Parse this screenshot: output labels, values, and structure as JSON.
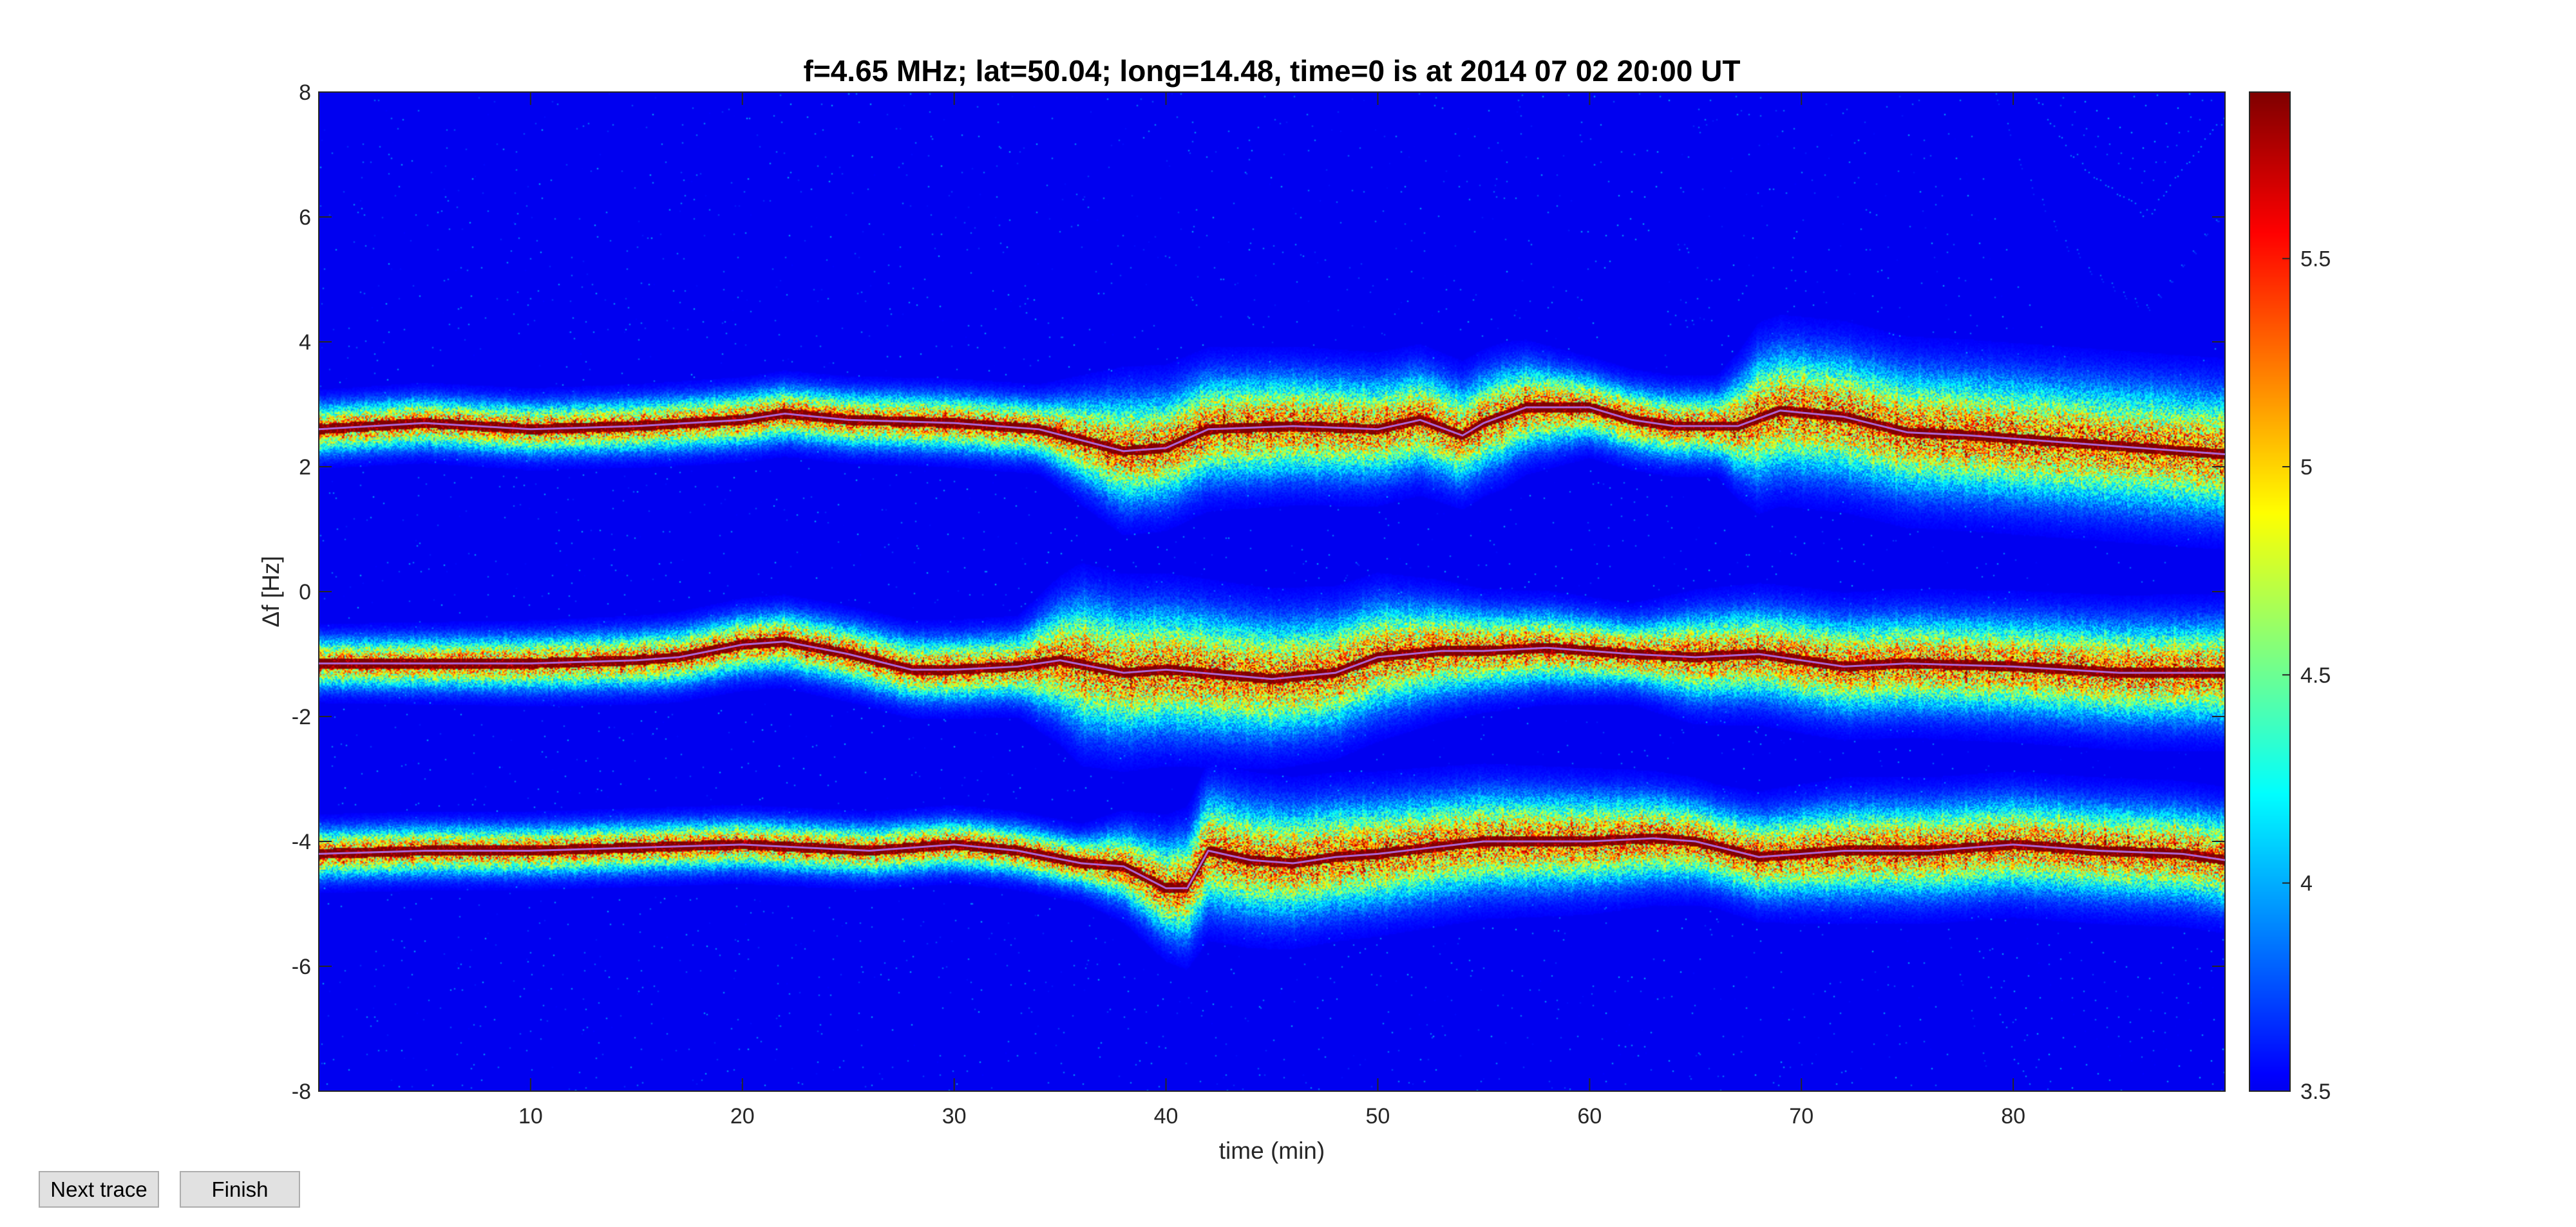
{
  "chart_data": {
    "type": "heatmap",
    "title": "f=4.65 MHz;  lat=50.04; long=14.48, time=0 is at 2014 07 02 20:00 UT",
    "xlabel": "time (min)",
    "ylabel": "Δf [Hz]",
    "xlim": [
      0,
      90
    ],
    "ylim": [
      -8,
      8
    ],
    "xticks": [
      10,
      20,
      30,
      40,
      50,
      60,
      70,
      80
    ],
    "yticks": [
      8,
      6,
      4,
      2,
      0,
      -2,
      -4,
      -6,
      -8
    ],
    "colorbar": {
      "clim": [
        3.5,
        5.9
      ],
      "ticks": [
        5.5,
        5,
        4.5,
        4,
        3.5
      ],
      "colormap": "jet"
    },
    "grid": false,
    "background_value": 3.5,
    "series": [
      {
        "trace": [
          [
            0,
            2.6
          ],
          [
            5,
            2.7
          ],
          [
            10,
            2.6
          ],
          [
            15,
            2.65
          ],
          [
            20,
            2.75
          ],
          [
            22,
            2.85
          ],
          [
            25,
            2.75
          ],
          [
            30,
            2.7
          ],
          [
            34,
            2.6
          ],
          [
            38,
            2.25
          ],
          [
            40,
            2.3
          ],
          [
            42,
            2.6
          ],
          [
            46,
            2.65
          ],
          [
            50,
            2.6
          ],
          [
            52,
            2.75
          ],
          [
            54,
            2.5
          ],
          [
            55,
            2.7
          ],
          [
            57,
            2.95
          ],
          [
            60,
            2.95
          ],
          [
            62,
            2.75
          ],
          [
            64,
            2.65
          ],
          [
            67,
            2.65
          ],
          [
            69,
            2.9
          ],
          [
            72,
            2.8
          ],
          [
            75,
            2.55
          ],
          [
            78,
            2.5
          ],
          [
            82,
            2.4
          ],
          [
            86,
            2.3
          ],
          [
            90,
            2.2
          ]
        ],
        "spread": [
          [
            0,
            0.3
          ],
          [
            34,
            0.35
          ],
          [
            38,
            0.7
          ],
          [
            56,
            0.6
          ],
          [
            60,
            0.4
          ],
          [
            66,
            0.4
          ],
          [
            68,
            0.8
          ],
          [
            90,
            0.8
          ]
        ]
      },
      {
        "trace": [
          [
            0,
            -1.15
          ],
          [
            5,
            -1.15
          ],
          [
            10,
            -1.15
          ],
          [
            15,
            -1.1
          ],
          [
            17,
            -1.05
          ],
          [
            20,
            -0.85
          ],
          [
            22,
            -0.8
          ],
          [
            25,
            -1.0
          ],
          [
            28,
            -1.25
          ],
          [
            30,
            -1.25
          ],
          [
            33,
            -1.2
          ],
          [
            35,
            -1.1
          ],
          [
            38,
            -1.3
          ],
          [
            40,
            -1.25
          ],
          [
            45,
            -1.4
          ],
          [
            48,
            -1.3
          ],
          [
            50,
            -1.05
          ],
          [
            53,
            -0.95
          ],
          [
            55,
            -0.95
          ],
          [
            58,
            -0.9
          ],
          [
            60,
            -0.95
          ],
          [
            62,
            -1.0
          ],
          [
            65,
            -1.05
          ],
          [
            68,
            -1.0
          ],
          [
            70,
            -1.1
          ],
          [
            72,
            -1.2
          ],
          [
            75,
            -1.15
          ],
          [
            80,
            -1.2
          ],
          [
            85,
            -1.3
          ],
          [
            90,
            -1.3
          ]
        ],
        "spread": [
          [
            0,
            0.3
          ],
          [
            33,
            0.4
          ],
          [
            36,
            0.85
          ],
          [
            50,
            0.7
          ],
          [
            55,
            0.5
          ],
          [
            62,
            0.4
          ],
          [
            65,
            0.55
          ],
          [
            70,
            0.6
          ],
          [
            90,
            0.65
          ]
        ]
      },
      {
        "trace": [
          [
            0,
            -4.2
          ],
          [
            5,
            -4.15
          ],
          [
            10,
            -4.15
          ],
          [
            15,
            -4.1
          ],
          [
            20,
            -4.05
          ],
          [
            23,
            -4.1
          ],
          [
            26,
            -4.15
          ],
          [
            30,
            -4.05
          ],
          [
            33,
            -4.15
          ],
          [
            36,
            -4.35
          ],
          [
            38,
            -4.4
          ],
          [
            40,
            -4.75
          ],
          [
            41,
            -4.75
          ],
          [
            42,
            -4.15
          ],
          [
            44,
            -4.3
          ],
          [
            46,
            -4.35
          ],
          [
            48,
            -4.25
          ],
          [
            50,
            -4.2
          ],
          [
            55,
            -4.0
          ],
          [
            60,
            -4.0
          ],
          [
            63,
            -3.95
          ],
          [
            65,
            -4.0
          ],
          [
            68,
            -4.25
          ],
          [
            72,
            -4.15
          ],
          [
            76,
            -4.15
          ],
          [
            80,
            -4.05
          ],
          [
            84,
            -4.15
          ],
          [
            88,
            -4.2
          ],
          [
            90,
            -4.3
          ]
        ],
        "spread": [
          [
            0,
            0.3
          ],
          [
            36,
            0.3
          ],
          [
            42,
            0.75
          ],
          [
            60,
            0.6
          ],
          [
            66,
            0.5
          ],
          [
            72,
            0.6
          ],
          [
            90,
            0.6
          ]
        ]
      }
    ],
    "trace_line_color": "#b06ee8",
    "axis_color": "#262626"
  },
  "ui": {
    "buttons": {
      "next_trace": "Next trace",
      "finish": "Finish"
    }
  }
}
